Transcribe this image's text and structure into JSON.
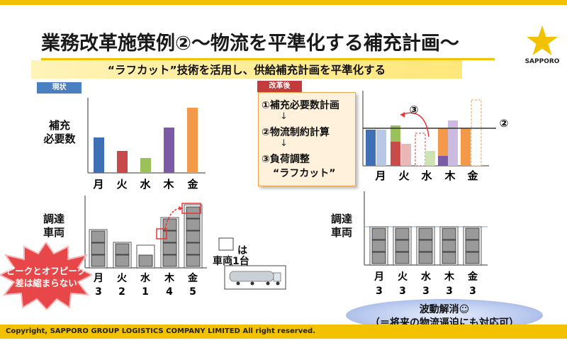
{
  "title": "業務改革施策例②～物流を平準化する補充計画～",
  "subtitle": "“ラフカット”技術を活用し、供給補充計画を平準化する",
  "logo": {
    "text": "SAPPORO"
  },
  "tags": {
    "current": "現状",
    "after": "改革後"
  },
  "labels": {
    "need_line1": "補充",
    "need_line2": "必要数",
    "vehicles_line1": "調達",
    "vehicles_line2": "車両"
  },
  "days": [
    "月",
    "火",
    "水",
    "木",
    "金"
  ],
  "current_vehicle_counts": [
    "3",
    "2",
    "1",
    "4",
    "5"
  ],
  "after_vehicle_counts": [
    "3",
    "3",
    "3",
    "3",
    "3"
  ],
  "steps": [
    "①補充必要数計画",
    "↓",
    "②物流制約計算",
    "↓",
    "③負荷調整",
    "“ラフカット”"
  ],
  "markers": {
    "circle2": "②",
    "circle3": "③"
  },
  "truck_note": {
    "mark": "は",
    "label": "車両1台"
  },
  "callout": {
    "line1": "ピークとオフピーク",
    "line2": "差は縮まらない"
  },
  "result": {
    "line1": "波動解消☺",
    "line2": "（＝将来の物流逼迫にも対応可）"
  },
  "copyright": "Copyright, SAPPORO GROUP LOGISTICS COMPANY LIMITED All right reserved.",
  "colors": {
    "brand_yellow": "#f2c200",
    "blue": "#3f6fb5",
    "red": "#c84a4a",
    "green": "#9bc15a",
    "purple": "#7b5aa6",
    "orange": "#f3994a"
  }
}
